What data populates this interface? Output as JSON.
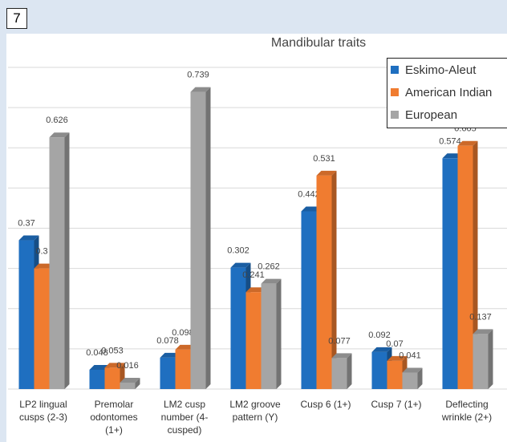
{
  "panel_label": "7",
  "chart_data": {
    "type": "bar3d",
    "title": "Mandibular traits",
    "categories": [
      "LP2 lingual cusps (2-3)",
      "Premolar odontomes (1+)",
      "LM2 cusp number (4-cusped)",
      "LM2 groove pattern (Y)",
      "Cusp 6 (1+)",
      "Cusp 7 (1+)",
      "Deflecting wrinkle (2+)"
    ],
    "series": [
      {
        "name": "Eskimo-Aleut",
        "color": "#1f6fc0",
        "values": [
          0.37,
          0.048,
          0.078,
          0.302,
          0.442,
          0.092,
          0.574
        ]
      },
      {
        "name": "American Indian",
        "color": "#f07c30",
        "values": [
          0.3,
          0.053,
          0.098,
          0.241,
          0.531,
          0.07,
          0.605
        ]
      },
      {
        "name": "European",
        "color": "#a5a5a5",
        "values": [
          0.626,
          0.016,
          0.739,
          0.262,
          0.077,
          0.041,
          0.137
        ]
      }
    ],
    "ylim": [
      0,
      0.8
    ],
    "yticks": [
      0,
      0.1,
      0.2,
      0.3,
      0.4,
      0.5,
      0.6,
      0.7,
      0.8
    ],
    "grid": true,
    "legend": "top-right"
  }
}
